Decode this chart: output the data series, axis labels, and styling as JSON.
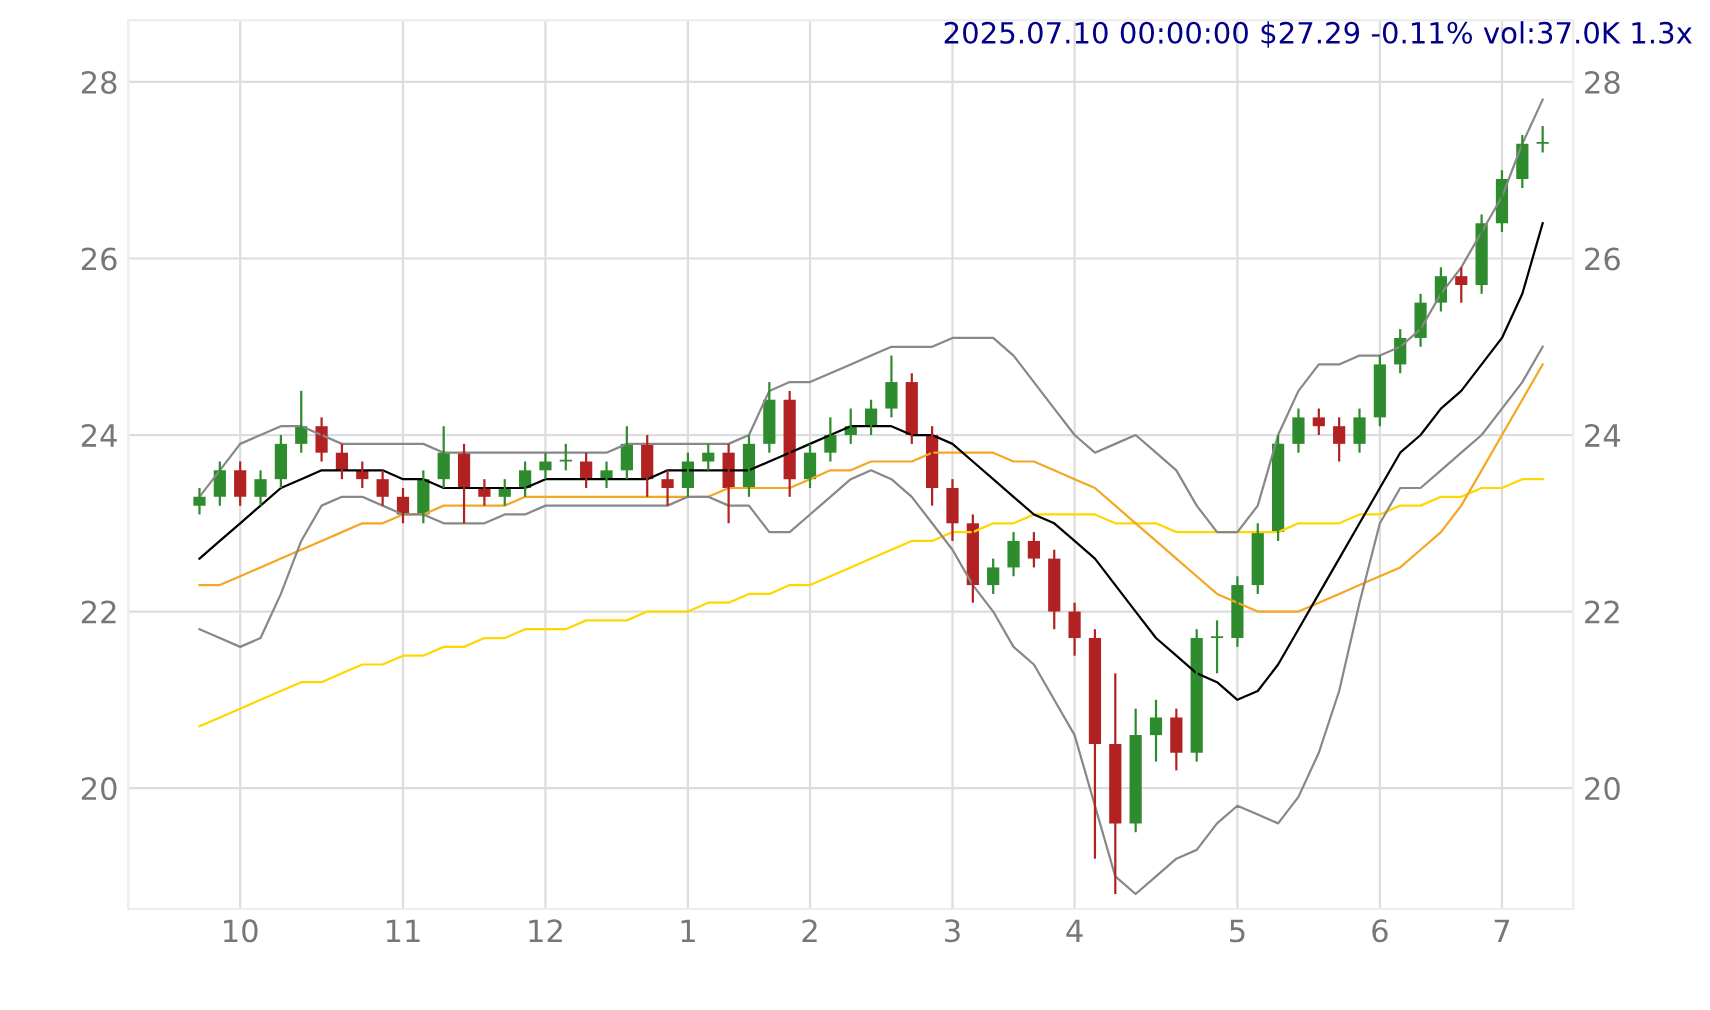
{
  "chart_data": {
    "type": "candlestick",
    "title": "2025.07.10 00:00:00 $27.29 -0.11% vol:37.0K 1.3x",
    "categories": [
      null,
      null,
      "10",
      null,
      null,
      null,
      null,
      null,
      null,
      null,
      "11",
      null,
      null,
      null,
      null,
      null,
      null,
      "12",
      null,
      null,
      null,
      null,
      null,
      null,
      "1",
      null,
      null,
      null,
      null,
      null,
      "2",
      null,
      null,
      null,
      null,
      null,
      null,
      "3",
      null,
      null,
      null,
      null,
      null,
      "4",
      null,
      null,
      null,
      null,
      null,
      null,
      null,
      "5",
      null,
      null,
      null,
      null,
      null,
      null,
      "6",
      null,
      null,
      null,
      null,
      null,
      "7",
      null,
      null
    ],
    "ohlc": [
      [
        23.2,
        23.4,
        23.1,
        23.3
      ],
      [
        23.3,
        23.7,
        23.2,
        23.6
      ],
      [
        23.6,
        23.7,
        23.2,
        23.3
      ],
      [
        23.3,
        23.6,
        23.2,
        23.5
      ],
      [
        23.5,
        24.0,
        23.4,
        23.9
      ],
      [
        23.9,
        24.5,
        23.8,
        24.1
      ],
      [
        24.1,
        24.2,
        23.7,
        23.8
      ],
      [
        23.8,
        23.9,
        23.5,
        23.6
      ],
      [
        23.6,
        23.7,
        23.4,
        23.5
      ],
      [
        23.5,
        23.6,
        23.2,
        23.3
      ],
      [
        23.3,
        23.4,
        23.0,
        23.1
      ],
      [
        23.1,
        23.6,
        23.0,
        23.5
      ],
      [
        23.5,
        24.1,
        23.4,
        23.8
      ],
      [
        23.8,
        23.9,
        23.0,
        23.4
      ],
      [
        23.4,
        23.5,
        23.2,
        23.3
      ],
      [
        23.3,
        23.5,
        23.2,
        23.4
      ],
      [
        23.4,
        23.7,
        23.3,
        23.6
      ],
      [
        23.6,
        23.8,
        23.5,
        23.7
      ],
      [
        23.7,
        23.9,
        23.6,
        23.7
      ],
      [
        23.7,
        23.8,
        23.4,
        23.5
      ],
      [
        23.5,
        23.7,
        23.4,
        23.6
      ],
      [
        23.6,
        24.1,
        23.5,
        23.9
      ],
      [
        23.9,
        24.0,
        23.3,
        23.5
      ],
      [
        23.5,
        23.6,
        23.2,
        23.4
      ],
      [
        23.4,
        23.8,
        23.3,
        23.7
      ],
      [
        23.7,
        23.9,
        23.6,
        23.8
      ],
      [
        23.8,
        23.9,
        23.0,
        23.4
      ],
      [
        23.4,
        24.0,
        23.3,
        23.9
      ],
      [
        23.9,
        24.6,
        23.8,
        24.4
      ],
      [
        24.4,
        24.5,
        23.3,
        23.5
      ],
      [
        23.5,
        23.9,
        23.4,
        23.8
      ],
      [
        23.8,
        24.2,
        23.7,
        24.0
      ],
      [
        24.0,
        24.3,
        23.9,
        24.1
      ],
      [
        24.1,
        24.4,
        24.0,
        24.3
      ],
      [
        24.3,
        24.9,
        24.2,
        24.6
      ],
      [
        24.6,
        24.7,
        23.9,
        24.0
      ],
      [
        24.0,
        24.1,
        23.2,
        23.4
      ],
      [
        23.4,
        23.5,
        22.8,
        23.0
      ],
      [
        23.0,
        23.1,
        22.1,
        22.3
      ],
      [
        22.3,
        22.6,
        22.2,
        22.5
      ],
      [
        22.5,
        22.9,
        22.4,
        22.8
      ],
      [
        22.8,
        22.9,
        22.5,
        22.6
      ],
      [
        22.6,
        22.7,
        21.8,
        22.0
      ],
      [
        22.0,
        22.1,
        21.5,
        21.7
      ],
      [
        21.7,
        21.8,
        19.2,
        20.5
      ],
      [
        20.5,
        21.3,
        18.8,
        19.6
      ],
      [
        19.6,
        20.9,
        19.5,
        20.6
      ],
      [
        20.6,
        21.0,
        20.3,
        20.8
      ],
      [
        20.8,
        20.9,
        20.2,
        20.4
      ],
      [
        20.4,
        21.8,
        20.3,
        21.7
      ],
      [
        21.7,
        21.9,
        21.3,
        21.7
      ],
      [
        21.7,
        22.4,
        21.6,
        22.3
      ],
      [
        22.3,
        23.0,
        22.2,
        22.9
      ],
      [
        22.9,
        24.0,
        22.8,
        23.9
      ],
      [
        23.9,
        24.3,
        23.8,
        24.2
      ],
      [
        24.2,
        24.3,
        24.0,
        24.1
      ],
      [
        24.1,
        24.2,
        23.7,
        23.9
      ],
      [
        23.9,
        24.3,
        23.8,
        24.2
      ],
      [
        24.2,
        24.9,
        24.1,
        24.8
      ],
      [
        24.8,
        25.2,
        24.7,
        25.1
      ],
      [
        25.1,
        25.6,
        25.0,
        25.5
      ],
      [
        25.5,
        25.9,
        25.4,
        25.8
      ],
      [
        25.8,
        25.9,
        25.5,
        25.7
      ],
      [
        25.7,
        26.5,
        25.6,
        26.4
      ],
      [
        26.4,
        27.0,
        26.3,
        26.9
      ],
      [
        26.9,
        27.4,
        26.8,
        27.3
      ],
      [
        27.3,
        27.5,
        27.2,
        27.3
      ]
    ],
    "series": [
      {
        "type": "line",
        "color": "#ffd700",
        "values": [
          20.7,
          20.8,
          20.9,
          21.0,
          21.1,
          21.2,
          21.2,
          21.3,
          21.4,
          21.4,
          21.5,
          21.5,
          21.6,
          21.6,
          21.7,
          21.7,
          21.8,
          21.8,
          21.8,
          21.9,
          21.9,
          21.9,
          22.0,
          22.0,
          22.0,
          22.1,
          22.1,
          22.2,
          22.2,
          22.3,
          22.3,
          22.4,
          22.5,
          22.6,
          22.7,
          22.8,
          22.8,
          22.9,
          22.9,
          23.0,
          23.0,
          23.1,
          23.1,
          23.1,
          23.1,
          23.0,
          23.0,
          23.0,
          22.9,
          22.9,
          22.9,
          22.9,
          22.9,
          22.9,
          23.0,
          23.0,
          23.0,
          23.1,
          23.1,
          23.2,
          23.2,
          23.3,
          23.3,
          23.4,
          23.4,
          23.5,
          23.5
        ]
      },
      {
        "type": "line",
        "color": "#f5a623",
        "values": [
          22.3,
          22.3,
          22.4,
          22.5,
          22.6,
          22.7,
          22.8,
          22.9,
          23.0,
          23.0,
          23.1,
          23.1,
          23.2,
          23.2,
          23.2,
          23.2,
          23.3,
          23.3,
          23.3,
          23.3,
          23.3,
          23.3,
          23.3,
          23.3,
          23.3,
          23.3,
          23.4,
          23.4,
          23.4,
          23.4,
          23.5,
          23.6,
          23.6,
          23.7,
          23.7,
          23.7,
          23.8,
          23.8,
          23.8,
          23.8,
          23.7,
          23.7,
          23.6,
          23.5,
          23.4,
          23.2,
          23.0,
          22.8,
          22.6,
          22.4,
          22.2,
          22.1,
          22.0,
          22.0,
          22.0,
          22.1,
          22.2,
          22.3,
          22.4,
          22.5,
          22.7,
          22.9,
          23.2,
          23.6,
          24.0,
          24.4,
          24.8
        ]
      },
      {
        "type": "line",
        "color": "#888888",
        "values": [
          23.3,
          23.6,
          23.9,
          24.0,
          24.1,
          24.1,
          24.0,
          23.9,
          23.9,
          23.9,
          23.9,
          23.9,
          23.8,
          23.8,
          23.8,
          23.8,
          23.8,
          23.8,
          23.8,
          23.8,
          23.8,
          23.9,
          23.9,
          23.9,
          23.9,
          23.9,
          23.9,
          24.0,
          24.5,
          24.6,
          24.6,
          24.7,
          24.8,
          24.9,
          25.0,
          25.0,
          25.0,
          25.1,
          25.1,
          25.1,
          24.9,
          24.6,
          24.3,
          24.0,
          23.8,
          23.9,
          24.0,
          23.8,
          23.6,
          23.2,
          22.9,
          22.9,
          23.2,
          24.0,
          24.5,
          24.8,
          24.8,
          24.9,
          24.9,
          25.0,
          25.2,
          25.6,
          25.9,
          26.3,
          26.7,
          27.3,
          27.8
        ]
      },
      {
        "type": "line",
        "color": "#888888",
        "values": [
          21.8,
          21.7,
          21.6,
          21.7,
          22.2,
          22.8,
          23.2,
          23.3,
          23.3,
          23.2,
          23.1,
          23.1,
          23.0,
          23.0,
          23.0,
          23.1,
          23.1,
          23.2,
          23.2,
          23.2,
          23.2,
          23.2,
          23.2,
          23.2,
          23.3,
          23.3,
          23.2,
          23.2,
          22.9,
          22.9,
          23.1,
          23.3,
          23.5,
          23.6,
          23.5,
          23.3,
          23.0,
          22.7,
          22.3,
          22.0,
          21.6,
          21.4,
          21.0,
          20.6,
          19.8,
          19.0,
          18.8,
          19.0,
          19.2,
          19.3,
          19.6,
          19.8,
          19.7,
          19.6,
          19.9,
          20.4,
          21.1,
          22.1,
          23.0,
          23.4,
          23.4,
          23.6,
          23.8,
          24.0,
          24.3,
          24.6,
          25.0
        ]
      },
      {
        "type": "line",
        "color": "#000000",
        "values": [
          22.6,
          22.8,
          23.0,
          23.2,
          23.4,
          23.5,
          23.6,
          23.6,
          23.6,
          23.6,
          23.5,
          23.5,
          23.4,
          23.4,
          23.4,
          23.4,
          23.4,
          23.5,
          23.5,
          23.5,
          23.5,
          23.5,
          23.5,
          23.6,
          23.6,
          23.6,
          23.6,
          23.6,
          23.7,
          23.8,
          23.9,
          24.0,
          24.1,
          24.1,
          24.1,
          24.0,
          24.0,
          23.9,
          23.7,
          23.5,
          23.3,
          23.1,
          23.0,
          22.8,
          22.6,
          22.3,
          22.0,
          21.7,
          21.5,
          21.3,
          21.2,
          21.0,
          21.1,
          21.4,
          21.8,
          22.2,
          22.6,
          23.0,
          23.4,
          23.8,
          24.0,
          24.3,
          24.5,
          24.8,
          25.1,
          25.6,
          26.4
        ]
      }
    ],
    "ylim": [
      18.63,
      28.7
    ],
    "yticks": [
      20,
      22,
      24,
      26,
      28
    ],
    "y2lim": [
      18.63,
      28.7
    ],
    "y2ticks": [
      20,
      22,
      24,
      26,
      28
    ],
    "grid": true
  }
}
